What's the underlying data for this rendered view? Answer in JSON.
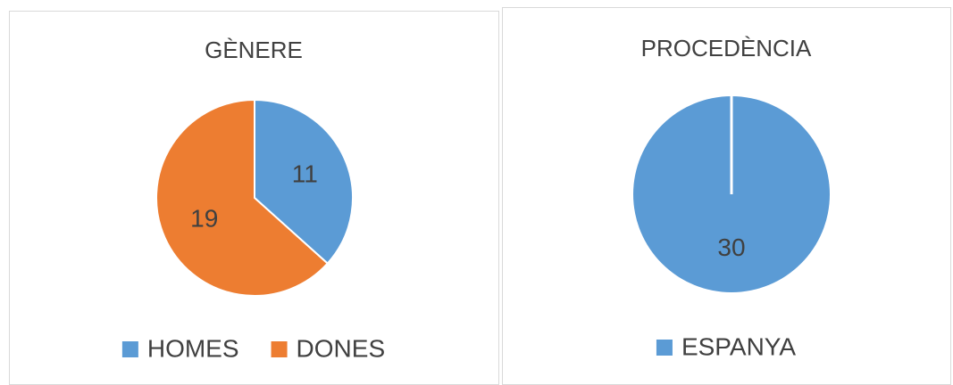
{
  "chart_data": [
    {
      "type": "pie",
      "title": "GÈNERE",
      "categories": [
        "HOMES",
        "DONES"
      ],
      "values": [
        11,
        19
      ],
      "colors": [
        "#5b9bd5",
        "#ed7d31"
      ],
      "legend": "bottom"
    },
    {
      "type": "pie",
      "title": "PROCEDÈNCIA",
      "categories": [
        "ESPANYA"
      ],
      "values": [
        30
      ],
      "colors": [
        "#5b9bd5"
      ],
      "legend": "bottom"
    }
  ]
}
